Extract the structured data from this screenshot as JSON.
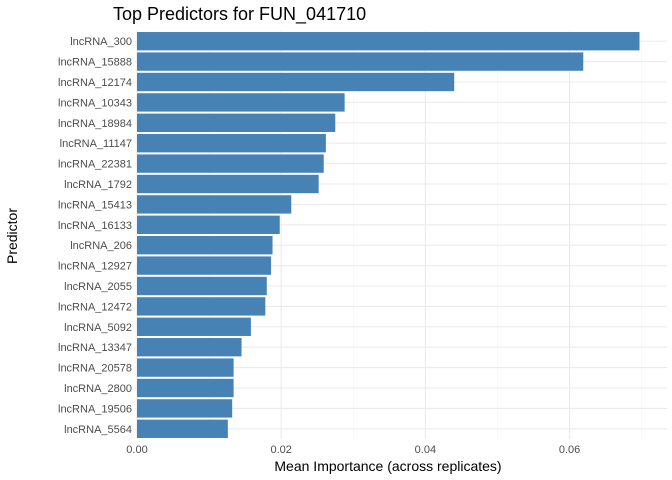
{
  "chart_data": {
    "type": "bar",
    "orientation": "horizontal",
    "title": "Top Predictors for FUN_041710",
    "xlabel": "Mean Importance (across replicates)",
    "ylabel": "Predictor",
    "xlim": [
      0,
      0.0715
    ],
    "x_ticks": [
      "0.00",
      "0.02",
      "0.04",
      "0.06"
    ],
    "x_tick_values": [
      0,
      0.02,
      0.04,
      0.06
    ],
    "bar_color": "#4682B4",
    "grid": true,
    "categories": [
      "lncRNA_300",
      "lncRNA_15888",
      "lncRNA_12174",
      "lncRNA_10343",
      "lncRNA_18984",
      "lncRNA_11147",
      "lncRNA_22381",
      "lncRNA_1792",
      "lncRNA_15413",
      "lncRNA_16133",
      "lncRNA_206",
      "lncRNA_12927",
      "lncRNA_2055",
      "lncRNA_12472",
      "lncRNA_5092",
      "lncRNA_13347",
      "lncRNA_20578",
      "lncRNA_2800",
      "lncRNA_19506",
      "lncRNA_5564"
    ],
    "values": [
      0.0697,
      0.0619,
      0.044,
      0.0288,
      0.0275,
      0.0262,
      0.0259,
      0.0252,
      0.0214,
      0.0198,
      0.0188,
      0.0186,
      0.018,
      0.0178,
      0.0158,
      0.0145,
      0.0134,
      0.0134,
      0.0132,
      0.0126
    ]
  }
}
